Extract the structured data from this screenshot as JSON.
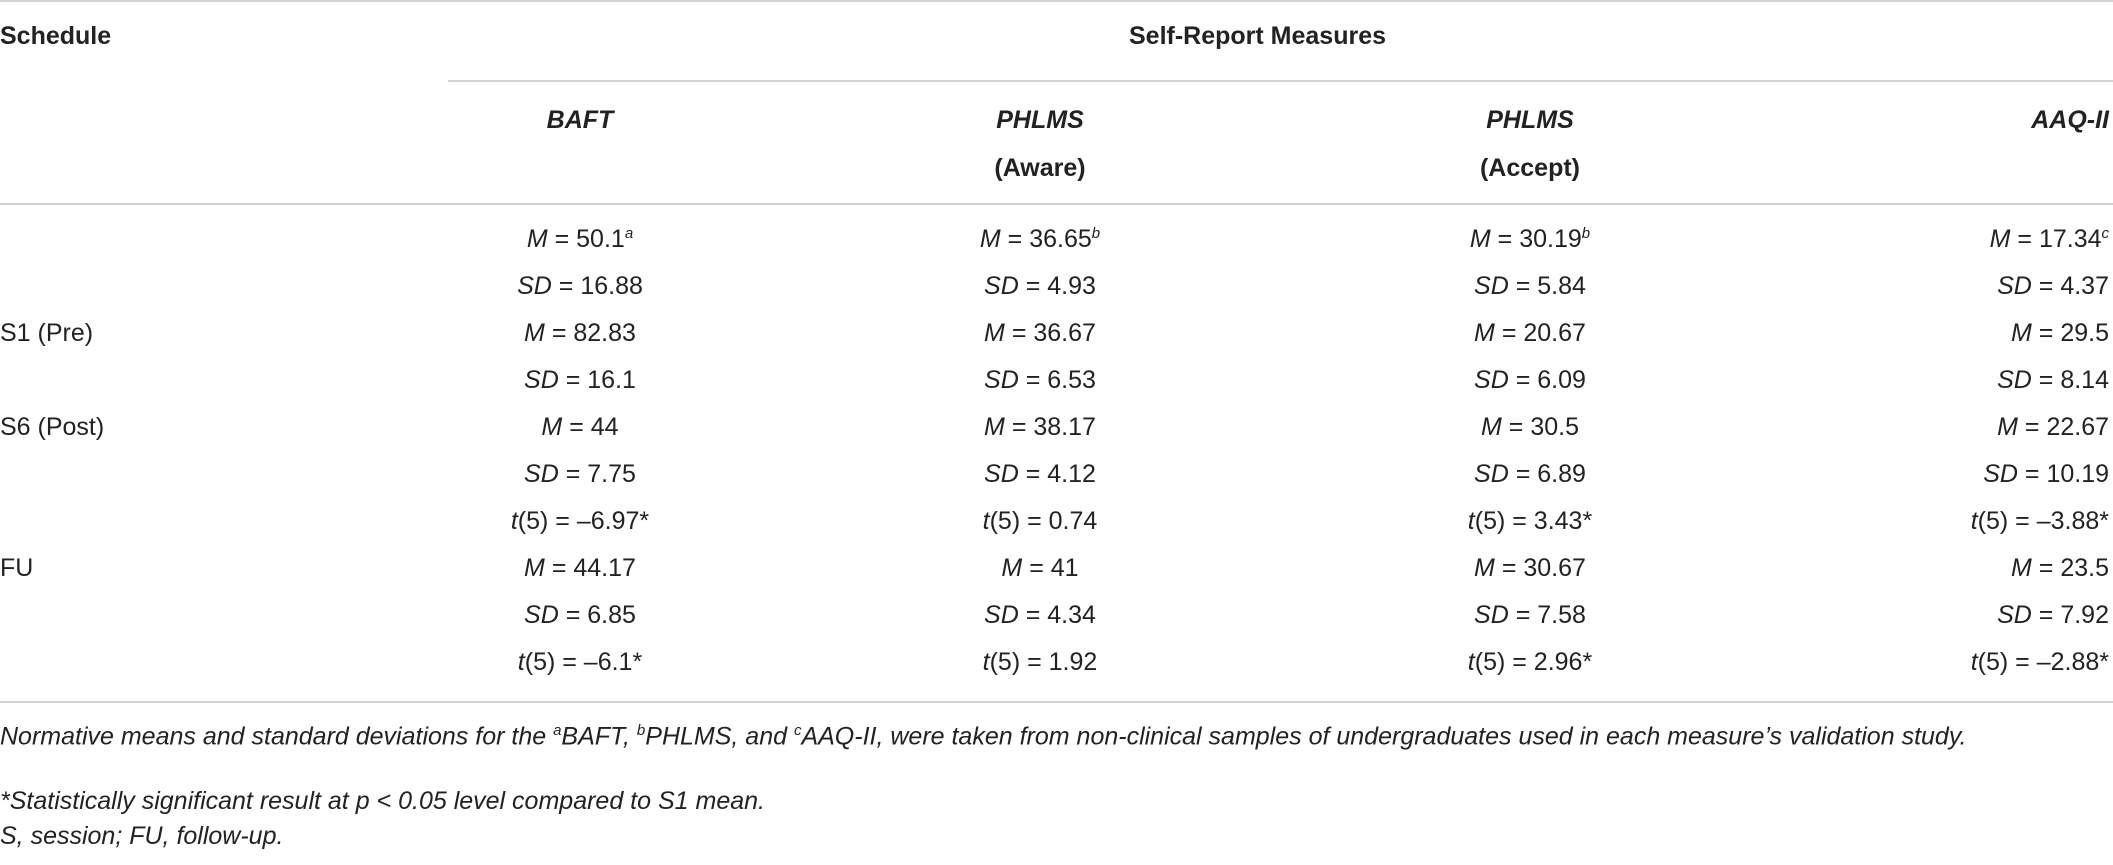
{
  "header": {
    "schedule": "Schedule",
    "group": "Self-Report Measures",
    "columns": [
      {
        "line1": "BAFT",
        "line2": ""
      },
      {
        "line1": "PHLMS",
        "line2": "(Aware)"
      },
      {
        "line1": "PHLMS",
        "line2": "(Accept)"
      },
      {
        "line1": "AAQ-II",
        "line2": ""
      }
    ]
  },
  "rows": [
    {
      "schedule": "",
      "cells": [
        {
          "sym": "M",
          "op": " = ",
          "val": "50.1",
          "sup": "a"
        },
        {
          "sym": "M",
          "op": " = ",
          "val": "36.65",
          "sup": "b"
        },
        {
          "sym": "M",
          "op": " = ",
          "val": "30.19",
          "sup": "b"
        },
        {
          "sym": "M",
          "op": " = ",
          "val": "17.34",
          "sup": "c"
        }
      ]
    },
    {
      "schedule": "",
      "cells": [
        {
          "sym": "SD",
          "op": " = ",
          "val": "16.88",
          "sup": ""
        },
        {
          "sym": "SD",
          "op": " = ",
          "val": "4.93",
          "sup": ""
        },
        {
          "sym": "SD",
          "op": " = ",
          "val": "5.84",
          "sup": ""
        },
        {
          "sym": "SD",
          "op": " = ",
          "val": "4.37",
          "sup": ""
        }
      ]
    },
    {
      "schedule": "S1 (Pre)",
      "cells": [
        {
          "sym": "M",
          "op": " = ",
          "val": "82.83",
          "sup": ""
        },
        {
          "sym": "M",
          "op": " = ",
          "val": "36.67",
          "sup": ""
        },
        {
          "sym": "M",
          "op": " = ",
          "val": "20.67",
          "sup": ""
        },
        {
          "sym": "M",
          "op": " = ",
          "val": "29.5",
          "sup": ""
        }
      ]
    },
    {
      "schedule": "",
      "cells": [
        {
          "sym": "SD",
          "op": " = ",
          "val": "16.1",
          "sup": ""
        },
        {
          "sym": "SD",
          "op": " = ",
          "val": "6.53",
          "sup": ""
        },
        {
          "sym": "SD",
          "op": " = ",
          "val": "6.09",
          "sup": ""
        },
        {
          "sym": "SD",
          "op": " = ",
          "val": "8.14",
          "sup": ""
        }
      ]
    },
    {
      "schedule": "S6 (Post)",
      "cells": [
        {
          "sym": "M",
          "op": " = ",
          "val": "44",
          "sup": ""
        },
        {
          "sym": "M",
          "op": " = ",
          "val": "38.17",
          "sup": ""
        },
        {
          "sym": "M",
          "op": " = ",
          "val": "30.5",
          "sup": ""
        },
        {
          "sym": "M",
          "op": " = ",
          "val": "22.67",
          "sup": ""
        }
      ]
    },
    {
      "schedule": "",
      "cells": [
        {
          "sym": "SD",
          "op": " = ",
          "val": "7.75",
          "sup": ""
        },
        {
          "sym": "SD",
          "op": " = ",
          "val": "4.12",
          "sup": ""
        },
        {
          "sym": "SD",
          "op": " = ",
          "val": "6.89",
          "sup": ""
        },
        {
          "sym": "SD",
          "op": " = ",
          "val": "10.19",
          "sup": ""
        }
      ]
    },
    {
      "schedule": "",
      "cells": [
        {
          "sym": "t",
          "op": "(5) = ",
          "val": "–6.97*",
          "sup": ""
        },
        {
          "sym": "t",
          "op": "(5) = ",
          "val": "0.74",
          "sup": ""
        },
        {
          "sym": "t",
          "op": "(5) = ",
          "val": "3.43*",
          "sup": ""
        },
        {
          "sym": "t",
          "op": "(5) = ",
          "val": "–3.88*",
          "sup": ""
        }
      ]
    },
    {
      "schedule": "FU",
      "cells": [
        {
          "sym": "M",
          "op": " = ",
          "val": "44.17",
          "sup": ""
        },
        {
          "sym": "M",
          "op": " = ",
          "val": "41",
          "sup": ""
        },
        {
          "sym": "M",
          "op": " = ",
          "val": "30.67",
          "sup": ""
        },
        {
          "sym": "M",
          "op": " = ",
          "val": "23.5",
          "sup": ""
        }
      ]
    },
    {
      "schedule": "",
      "cells": [
        {
          "sym": "SD",
          "op": " = ",
          "val": "6.85",
          "sup": ""
        },
        {
          "sym": "SD",
          "op": " = ",
          "val": "4.34",
          "sup": ""
        },
        {
          "sym": "SD",
          "op": " = ",
          "val": "7.58",
          "sup": ""
        },
        {
          "sym": "SD",
          "op": " = ",
          "val": "7.92",
          "sup": ""
        }
      ]
    },
    {
      "schedule": "",
      "cells": [
        {
          "sym": "t",
          "op": "(5) = ",
          "val": "–6.1*",
          "sup": ""
        },
        {
          "sym": "t",
          "op": "(5) = ",
          "val": "1.92",
          "sup": ""
        },
        {
          "sym": "t",
          "op": "(5) = ",
          "val": "2.96*",
          "sup": ""
        },
        {
          "sym": "t",
          "op": "(5) = ",
          "val": "–2.88*",
          "sup": ""
        }
      ]
    }
  ],
  "notes": {
    "normative": {
      "prefix": "Normative means and standard deviations for the ",
      "a": "a",
      "a_text": "BAFT, ",
      "b": "b",
      "b_text": "PHLMS, and ",
      "c": "c",
      "c_text": "AAQ-II, were taken from non-clinical samples of undergraduates used in each measure’s validation study."
    },
    "significance": "*Statistically significant result at p < 0.05 level compared to S1 mean.",
    "abbreviations": "S, session; FU, follow-up."
  }
}
